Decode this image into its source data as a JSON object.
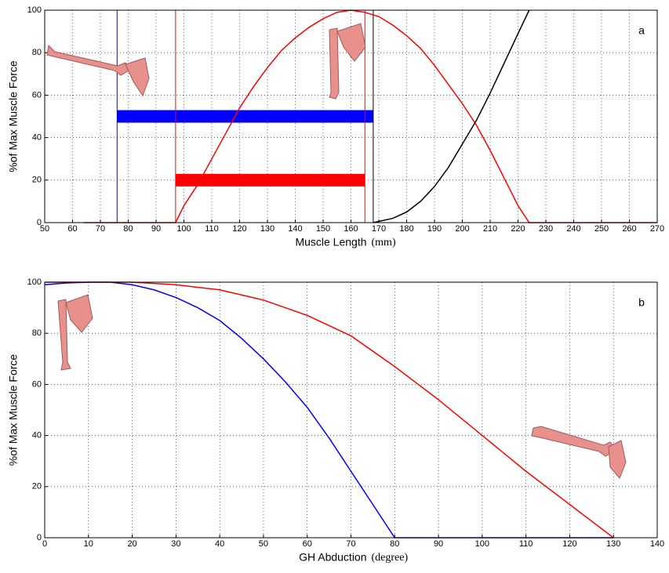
{
  "chart_data": [
    {
      "type": "line",
      "xlabel": "Muscle Length",
      "xlabel_unit": "(mm)",
      "ylabel": "%of Max Muscle Force",
      "annotation": "a",
      "xlim": [
        50,
        270
      ],
      "ylim": [
        0,
        100
      ],
      "xticks": [
        50,
        60,
        70,
        80,
        90,
        100,
        110,
        120,
        130,
        140,
        150,
        160,
        170,
        180,
        190,
        200,
        210,
        220,
        230,
        240,
        250,
        260,
        270
      ],
      "yticks": [
        0,
        20,
        40,
        60,
        80,
        100
      ],
      "grid": true,
      "series": [
        {
          "color": "#ff0000",
          "x": [
            64,
            70,
            80,
            90,
            97,
            100,
            105,
            110,
            115,
            120,
            125,
            130,
            135,
            140,
            145,
            150,
            155,
            160,
            165,
            170,
            175,
            180,
            185,
            190,
            195,
            200,
            205,
            210,
            215,
            220,
            224,
            230,
            240,
            250,
            260,
            270
          ],
          "values": [
            0,
            0,
            0,
            0,
            0,
            8,
            18,
            30,
            42,
            54,
            64,
            73,
            81,
            87,
            92,
            96,
            99,
            100,
            99,
            97,
            93,
            88,
            82,
            74,
            65,
            56,
            46,
            34,
            21,
            8,
            0,
            0,
            0,
            0,
            0,
            0
          ]
        },
        {
          "color": "#000000",
          "x": [
            168,
            175,
            180,
            185,
            190,
            195,
            200,
            205,
            210,
            215,
            220,
            224
          ],
          "values": [
            0,
            2,
            5,
            10,
            17,
            26,
            37,
            48,
            61,
            75,
            89,
            100
          ]
        }
      ],
      "vlines": [
        {
          "x": 76,
          "color": "#0000ff"
        },
        {
          "x": 97,
          "color": "#ff0000"
        },
        {
          "x": 165,
          "color": "#ff0000"
        },
        {
          "x": 168,
          "color": "#000000"
        }
      ],
      "bars": [
        {
          "x0": 76,
          "x1": 168,
          "y": 50,
          "color": "#0000ff"
        },
        {
          "x0": 97,
          "x1": 165,
          "y": 20,
          "color": "#ff0000"
        }
      ]
    },
    {
      "type": "line",
      "xlabel": "GH Abduction",
      "xlabel_unit": "(degree)",
      "ylabel": "%of Max Muscle Force",
      "annotation": "b",
      "xlim": [
        0,
        140
      ],
      "ylim": [
        0,
        100
      ],
      "xticks": [
        0,
        10,
        20,
        30,
        40,
        50,
        60,
        70,
        80,
        90,
        100,
        110,
        120,
        130,
        140
      ],
      "yticks": [
        0,
        20,
        40,
        60,
        80,
        100
      ],
      "grid": true,
      "series": [
        {
          "color": "#0000ff",
          "x": [
            0,
            5,
            10,
            15,
            20,
            25,
            30,
            35,
            40,
            45,
            50,
            55,
            60,
            65,
            70,
            75,
            80,
            90,
            100,
            110,
            120,
            130
          ],
          "values": [
            99,
            99.7,
            100,
            100,
            99,
            97,
            94,
            90,
            85,
            78,
            70,
            61,
            51,
            39,
            26,
            13,
            0,
            0,
            0,
            0,
            0,
            0
          ]
        },
        {
          "color": "#ff0000",
          "x": [
            0,
            10,
            20,
            30,
            40,
            50,
            55,
            60,
            70,
            80,
            90,
            100,
            110,
            120,
            130
          ],
          "values": [
            100,
            100,
            100,
            99,
            97,
            93,
            90,
            87,
            79,
            67,
            54,
            40,
            26,
            13,
            0
          ]
        }
      ],
      "vlines": [],
      "bars": []
    }
  ]
}
